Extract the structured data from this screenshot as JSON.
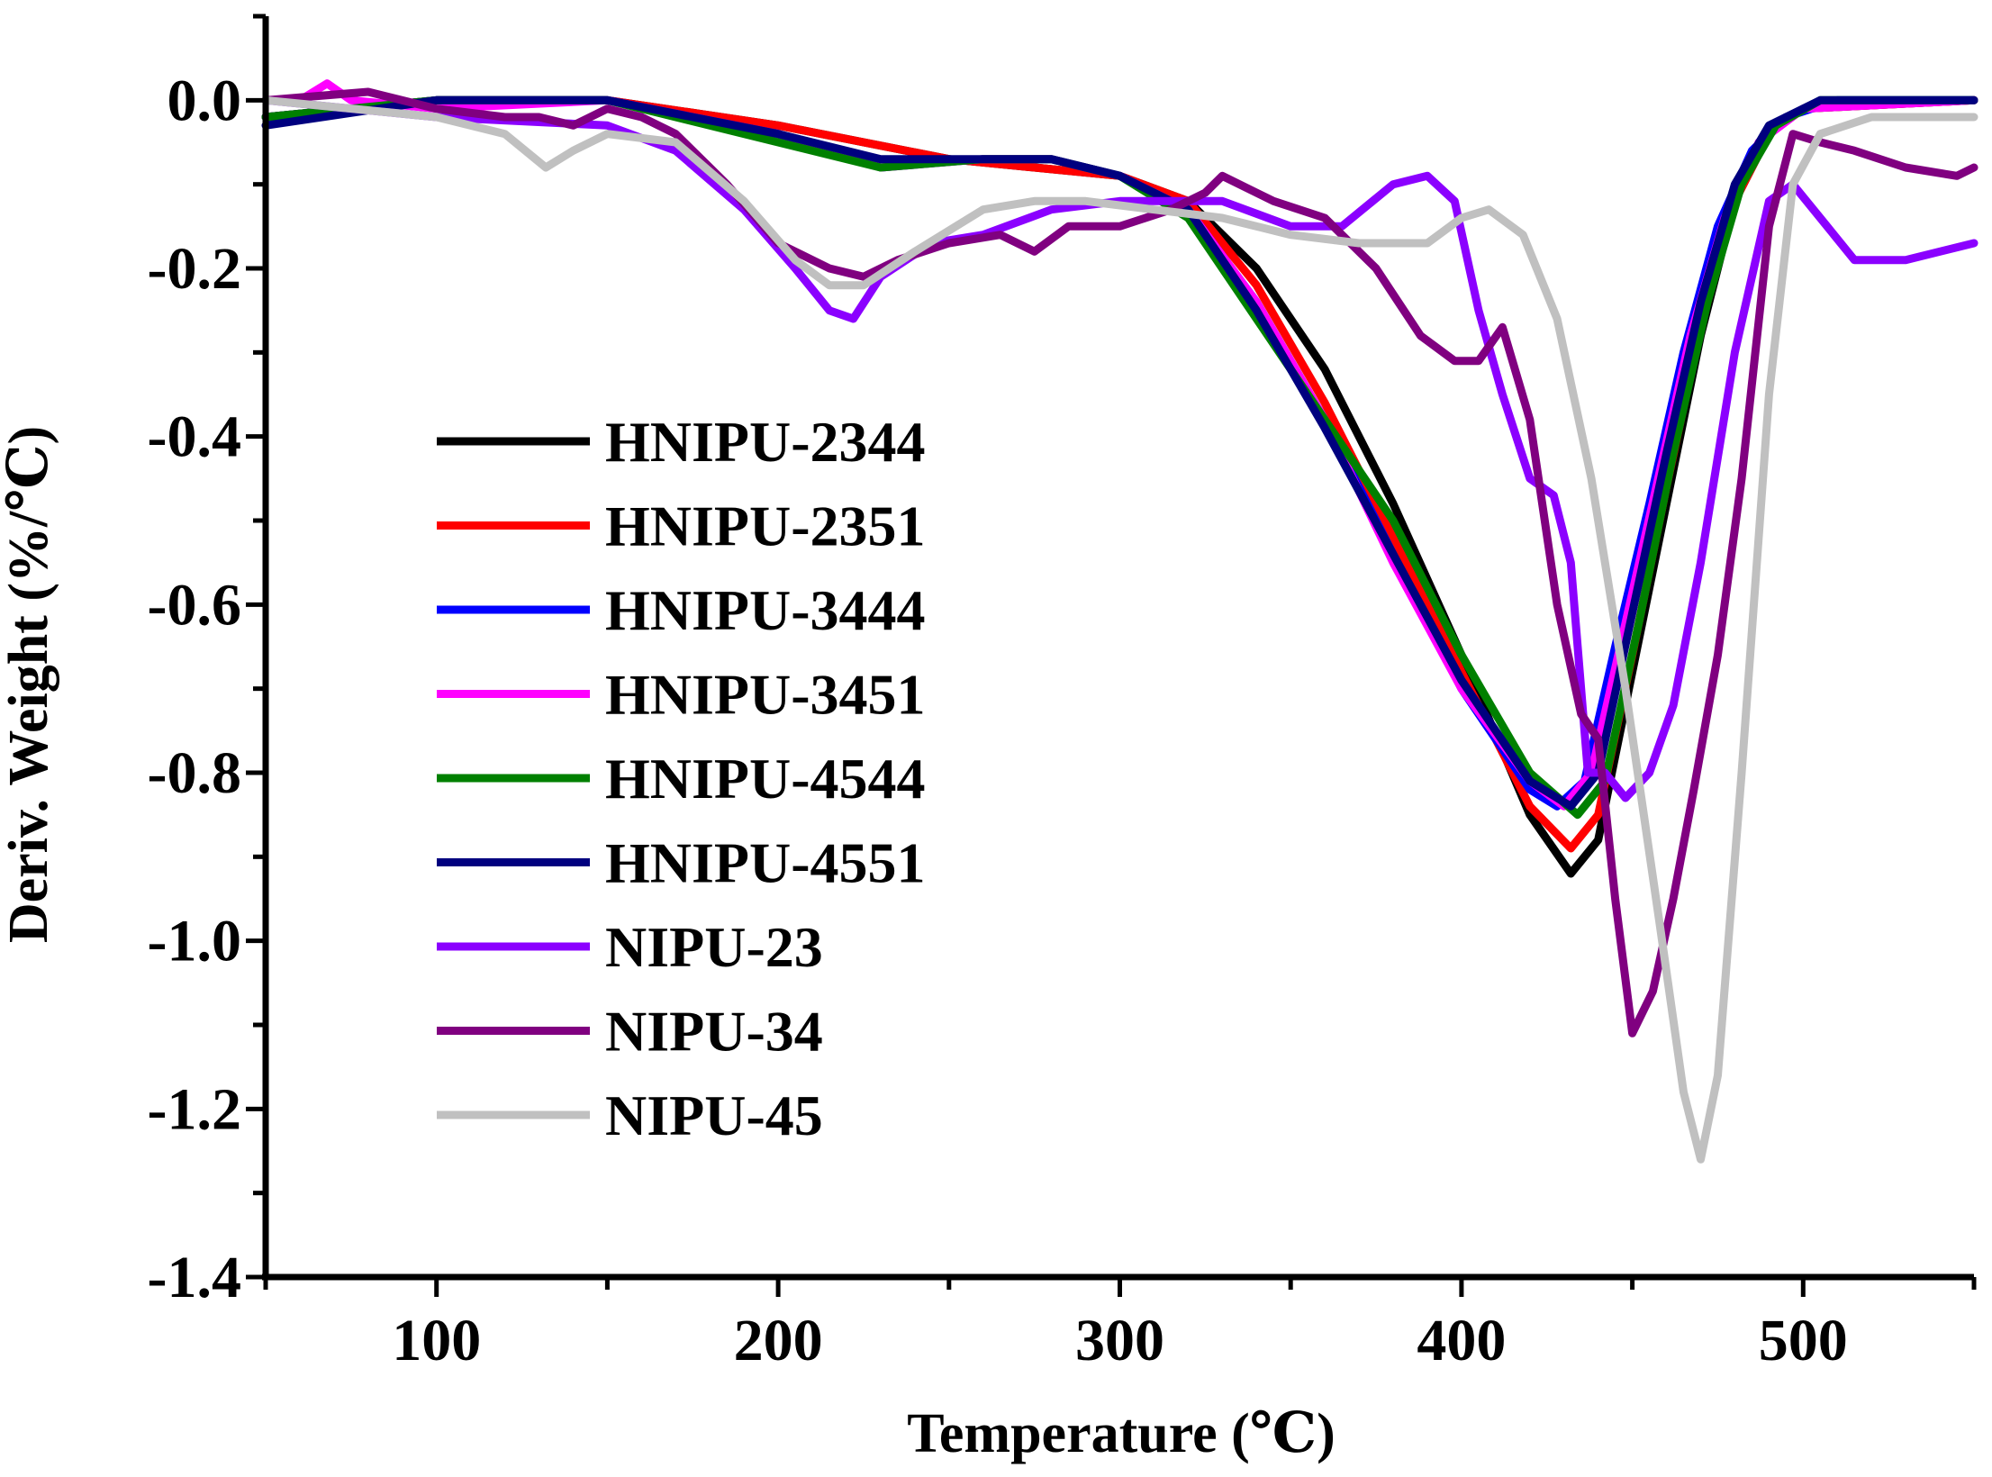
{
  "chart_data": {
    "type": "line",
    "title": "",
    "xlabel": "Temperature (℃)",
    "ylabel": "Deriv. Weight (%/℃)",
    "xlim": [
      50,
      550
    ],
    "ylim": [
      -1.4,
      0.1
    ],
    "xticks": [
      100,
      200,
      300,
      400,
      500
    ],
    "xtick_labels": [
      "100",
      "200",
      "300",
      "400",
      "500"
    ],
    "yticks": [
      0.0,
      -0.2,
      -0.4,
      -0.6,
      -0.8,
      -1.0,
      -1.2,
      -1.4
    ],
    "ytick_labels": [
      "0.0",
      "-0.2",
      "-0.4",
      "-0.6",
      "-0.8",
      "-1.0",
      "-1.2",
      "-1.4"
    ],
    "grid": false,
    "legend_position": "center-left",
    "series": [
      {
        "name": "HNIPU-2344",
        "color": "#000000",
        "points": [
          [
            50,
            -0.02
          ],
          [
            100,
            0.0
          ],
          [
            150,
            0.0
          ],
          [
            200,
            -0.03
          ],
          [
            250,
            -0.07
          ],
          [
            300,
            -0.09
          ],
          [
            320,
            -0.12
          ],
          [
            340,
            -0.2
          ],
          [
            360,
            -0.32
          ],
          [
            380,
            -0.48
          ],
          [
            400,
            -0.66
          ],
          [
            420,
            -0.85
          ],
          [
            432,
            -0.92
          ],
          [
            440,
            -0.88
          ],
          [
            450,
            -0.68
          ],
          [
            460,
            -0.48
          ],
          [
            470,
            -0.28
          ],
          [
            480,
            -0.12
          ],
          [
            490,
            -0.04
          ],
          [
            500,
            -0.01
          ],
          [
            550,
            0.0
          ]
        ]
      },
      {
        "name": "HNIPU-2351",
        "color": "#ff0000",
        "points": [
          [
            50,
            -0.02
          ],
          [
            100,
            0.0
          ],
          [
            150,
            0.0
          ],
          [
            200,
            -0.03
          ],
          [
            250,
            -0.07
          ],
          [
            300,
            -0.09
          ],
          [
            320,
            -0.12
          ],
          [
            340,
            -0.22
          ],
          [
            360,
            -0.36
          ],
          [
            380,
            -0.52
          ],
          [
            400,
            -0.68
          ],
          [
            420,
            -0.84
          ],
          [
            432,
            -0.89
          ],
          [
            440,
            -0.85
          ],
          [
            450,
            -0.66
          ],
          [
            460,
            -0.46
          ],
          [
            470,
            -0.27
          ],
          [
            480,
            -0.12
          ],
          [
            490,
            -0.04
          ],
          [
            500,
            -0.01
          ],
          [
            550,
            0.0
          ]
        ]
      },
      {
        "name": "HNIPU-3444",
        "color": "#0000ff",
        "points": [
          [
            50,
            -0.02
          ],
          [
            100,
            0.0
          ],
          [
            150,
            0.0
          ],
          [
            200,
            -0.04
          ],
          [
            230,
            -0.08
          ],
          [
            260,
            -0.07
          ],
          [
            280,
            -0.07
          ],
          [
            300,
            -0.09
          ],
          [
            320,
            -0.13
          ],
          [
            340,
            -0.24
          ],
          [
            360,
            -0.38
          ],
          [
            380,
            -0.54
          ],
          [
            400,
            -0.7
          ],
          [
            420,
            -0.82
          ],
          [
            428,
            -0.84
          ],
          [
            436,
            -0.81
          ],
          [
            445,
            -0.65
          ],
          [
            455,
            -0.48
          ],
          [
            465,
            -0.3
          ],
          [
            475,
            -0.15
          ],
          [
            485,
            -0.06
          ],
          [
            495,
            -0.02
          ],
          [
            510,
            0.0
          ],
          [
            550,
            0.0
          ]
        ]
      },
      {
        "name": "HNIPU-3451",
        "color": "#ff00ff",
        "points": [
          [
            50,
            0.0
          ],
          [
            60,
            0.0
          ],
          [
            68,
            0.02
          ],
          [
            75,
            0.0
          ],
          [
            100,
            -0.01
          ],
          [
            150,
            0.0
          ],
          [
            200,
            -0.04
          ],
          [
            230,
            -0.08
          ],
          [
            260,
            -0.07
          ],
          [
            280,
            -0.07
          ],
          [
            300,
            -0.09
          ],
          [
            320,
            -0.13
          ],
          [
            340,
            -0.24
          ],
          [
            360,
            -0.38
          ],
          [
            380,
            -0.55
          ],
          [
            400,
            -0.7
          ],
          [
            420,
            -0.81
          ],
          [
            430,
            -0.84
          ],
          [
            438,
            -0.8
          ],
          [
            447,
            -0.64
          ],
          [
            457,
            -0.46
          ],
          [
            467,
            -0.28
          ],
          [
            477,
            -0.14
          ],
          [
            487,
            -0.05
          ],
          [
            500,
            -0.01
          ],
          [
            550,
            0.0
          ]
        ]
      },
      {
        "name": "HNIPU-4544",
        "color": "#008000",
        "points": [
          [
            50,
            -0.02
          ],
          [
            100,
            0.0
          ],
          [
            150,
            0.0
          ],
          [
            200,
            -0.05
          ],
          [
            230,
            -0.08
          ],
          [
            260,
            -0.07
          ],
          [
            280,
            -0.07
          ],
          [
            300,
            -0.09
          ],
          [
            320,
            -0.14
          ],
          [
            340,
            -0.26
          ],
          [
            360,
            -0.38
          ],
          [
            380,
            -0.5
          ],
          [
            400,
            -0.66
          ],
          [
            420,
            -0.8
          ],
          [
            434,
            -0.85
          ],
          [
            442,
            -0.81
          ],
          [
            452,
            -0.62
          ],
          [
            462,
            -0.42
          ],
          [
            472,
            -0.24
          ],
          [
            482,
            -0.1
          ],
          [
            492,
            -0.03
          ],
          [
            505,
            0.0
          ],
          [
            550,
            0.0
          ]
        ]
      },
      {
        "name": "HNIPU-4551",
        "color": "#00007f",
        "points": [
          [
            50,
            -0.03
          ],
          [
            100,
            0.0
          ],
          [
            150,
            0.0
          ],
          [
            200,
            -0.04
          ],
          [
            230,
            -0.07
          ],
          [
            260,
            -0.07
          ],
          [
            280,
            -0.07
          ],
          [
            300,
            -0.09
          ],
          [
            320,
            -0.13
          ],
          [
            340,
            -0.25
          ],
          [
            360,
            -0.39
          ],
          [
            380,
            -0.54
          ],
          [
            400,
            -0.69
          ],
          [
            420,
            -0.81
          ],
          [
            432,
            -0.84
          ],
          [
            440,
            -0.8
          ],
          [
            450,
            -0.61
          ],
          [
            460,
            -0.42
          ],
          [
            470,
            -0.24
          ],
          [
            480,
            -0.1
          ],
          [
            490,
            -0.03
          ],
          [
            505,
            0.0
          ],
          [
            550,
            0.0
          ]
        ]
      },
      {
        "name": "NIPU-23",
        "color": "#8b00ff",
        "points": [
          [
            50,
            0.0
          ],
          [
            100,
            -0.02
          ],
          [
            150,
            -0.03
          ],
          [
            170,
            -0.06
          ],
          [
            190,
            -0.13
          ],
          [
            205,
            -0.2
          ],
          [
            215,
            -0.25
          ],
          [
            222,
            -0.26
          ],
          [
            230,
            -0.21
          ],
          [
            245,
            -0.17
          ],
          [
            260,
            -0.16
          ],
          [
            280,
            -0.13
          ],
          [
            300,
            -0.12
          ],
          [
            330,
            -0.12
          ],
          [
            350,
            -0.15
          ],
          [
            365,
            -0.15
          ],
          [
            380,
            -0.1
          ],
          [
            390,
            -0.09
          ],
          [
            398,
            -0.12
          ],
          [
            405,
            -0.25
          ],
          [
            412,
            -0.35
          ],
          [
            420,
            -0.45
          ],
          [
            427,
            -0.47
          ],
          [
            432,
            -0.55
          ],
          [
            437,
            -0.8
          ],
          [
            442,
            -0.8
          ],
          [
            448,
            -0.83
          ],
          [
            455,
            -0.8
          ],
          [
            462,
            -0.72
          ],
          [
            470,
            -0.55
          ],
          [
            480,
            -0.3
          ],
          [
            490,
            -0.12
          ],
          [
            497,
            -0.1
          ],
          [
            505,
            -0.14
          ],
          [
            515,
            -0.19
          ],
          [
            530,
            -0.19
          ],
          [
            550,
            -0.17
          ]
        ]
      },
      {
        "name": "NIPU-34",
        "color": "#800080",
        "points": [
          [
            50,
            0.0
          ],
          [
            80,
            0.01
          ],
          [
            100,
            -0.01
          ],
          [
            120,
            -0.02
          ],
          [
            130,
            -0.02
          ],
          [
            140,
            -0.03
          ],
          [
            150,
            -0.01
          ],
          [
            160,
            -0.02
          ],
          [
            170,
            -0.04
          ],
          [
            185,
            -0.1
          ],
          [
            200,
            -0.17
          ],
          [
            215,
            -0.2
          ],
          [
            225,
            -0.21
          ],
          [
            235,
            -0.19
          ],
          [
            250,
            -0.17
          ],
          [
            265,
            -0.16
          ],
          [
            275,
            -0.18
          ],
          [
            285,
            -0.15
          ],
          [
            300,
            -0.15
          ],
          [
            315,
            -0.13
          ],
          [
            325,
            -0.11
          ],
          [
            330,
            -0.09
          ],
          [
            345,
            -0.12
          ],
          [
            360,
            -0.14
          ],
          [
            375,
            -0.2
          ],
          [
            388,
            -0.28
          ],
          [
            398,
            -0.31
          ],
          [
            405,
            -0.31
          ],
          [
            412,
            -0.27
          ],
          [
            420,
            -0.38
          ],
          [
            428,
            -0.6
          ],
          [
            435,
            -0.73
          ],
          [
            440,
            -0.76
          ],
          [
            445,
            -0.95
          ],
          [
            450,
            -1.11
          ],
          [
            456,
            -1.06
          ],
          [
            462,
            -0.95
          ],
          [
            468,
            -0.82
          ],
          [
            475,
            -0.66
          ],
          [
            482,
            -0.45
          ],
          [
            490,
            -0.15
          ],
          [
            497,
            -0.04
          ],
          [
            505,
            -0.05
          ],
          [
            515,
            -0.06
          ],
          [
            530,
            -0.08
          ],
          [
            545,
            -0.09
          ],
          [
            550,
            -0.08
          ]
        ]
      },
      {
        "name": "NIPU-45",
        "color": "#c0c0c0",
        "points": [
          [
            50,
            0.0
          ],
          [
            100,
            -0.02
          ],
          [
            120,
            -0.04
          ],
          [
            132,
            -0.08
          ],
          [
            140,
            -0.06
          ],
          [
            150,
            -0.04
          ],
          [
            170,
            -0.05
          ],
          [
            190,
            -0.12
          ],
          [
            205,
            -0.19
          ],
          [
            215,
            -0.22
          ],
          [
            225,
            -0.22
          ],
          [
            240,
            -0.18
          ],
          [
            260,
            -0.13
          ],
          [
            275,
            -0.12
          ],
          [
            290,
            -0.12
          ],
          [
            310,
            -0.13
          ],
          [
            330,
            -0.14
          ],
          [
            350,
            -0.16
          ],
          [
            370,
            -0.17
          ],
          [
            390,
            -0.17
          ],
          [
            400,
            -0.14
          ],
          [
            408,
            -0.13
          ],
          [
            418,
            -0.16
          ],
          [
            428,
            -0.26
          ],
          [
            438,
            -0.45
          ],
          [
            448,
            -0.7
          ],
          [
            458,
            -0.98
          ],
          [
            465,
            -1.18
          ],
          [
            470,
            -1.26
          ],
          [
            475,
            -1.16
          ],
          [
            482,
            -0.8
          ],
          [
            490,
            -0.35
          ],
          [
            497,
            -0.1
          ],
          [
            505,
            -0.04
          ],
          [
            520,
            -0.02
          ],
          [
            550,
            -0.02
          ]
        ]
      }
    ]
  }
}
